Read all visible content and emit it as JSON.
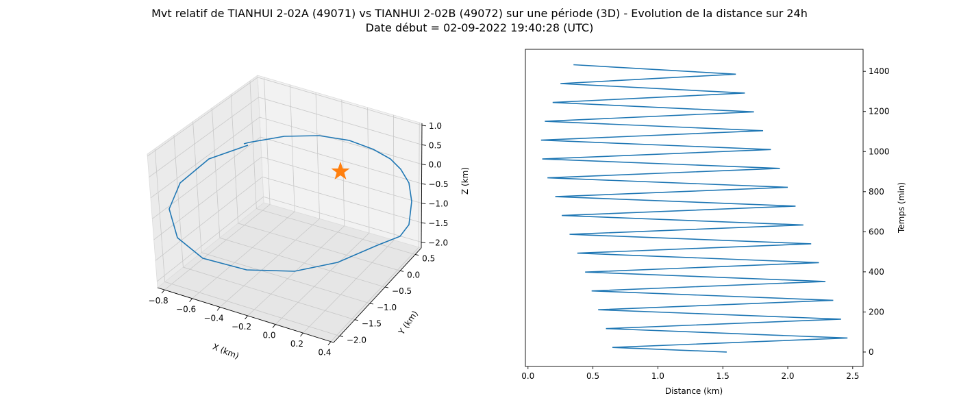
{
  "title_line1": "Mvt relatif de TIANHUI 2-02A (49071) vs TIANHUI 2-02B (49072) sur une période (3D) - Evolution de la distance sur 24h",
  "title_line2": "Date début = 02-09-2022 19:40:28 (UTC)",
  "colors": {
    "line": "#1f77b4",
    "star": "#ff7f0e",
    "grid": "#c8c8c8",
    "pane_back": "#f2f2f2",
    "pane_side": "#ebebeb",
    "pane_floor": "#e6e6e6"
  },
  "chart_data": [
    {
      "type": "line3d",
      "xlabel": "X (km)",
      "ylabel": "Y (km)",
      "zlabel": "Z (km)",
      "xticks": [
        "−0.8",
        "−0.6",
        "−0.4",
        "−0.2",
        "0.0",
        "0.2",
        "0.4"
      ],
      "yticks": [
        "−2.0",
        "−1.5",
        "−1.0",
        "−0.5",
        "0.0",
        "0.5"
      ],
      "zticks": [
        "1.0",
        "0.5",
        "0.0",
        "−0.5",
        "−1.0",
        "−1.5",
        "−2.0"
      ],
      "xlim": [
        -0.85,
        0.42
      ],
      "ylim": [
        -2.2,
        0.7
      ],
      "zlim": [
        -2.15,
        1.05
      ],
      "grid": true,
      "marker": {
        "symbol": "star",
        "x": 0.0,
        "y": 0.0,
        "z": 0.0
      }
    },
    {
      "type": "line",
      "xlabel": "Distance (km)",
      "ylabel": "Temps (min)",
      "xticks": [
        "0.0",
        "0.5",
        "1.0",
        "1.5",
        "2.0",
        "2.5"
      ],
      "yticks": [
        "0",
        "200",
        "400",
        "600",
        "800",
        "1000",
        "1200",
        "1400"
      ],
      "xlim": [
        -0.02,
        2.58
      ],
      "ylim": [
        -72,
        1510
      ],
      "yaxis_side": "right",
      "grid": false,
      "series": [
        {
          "x": [
            1.53,
            0.65,
            2.46,
            0.6,
            2.41,
            0.54,
            2.35,
            0.49,
            2.29,
            0.44,
            2.24,
            0.38,
            2.18,
            0.32,
            2.12,
            0.26,
            2.06,
            0.21,
            2.0,
            0.15,
            1.94,
            0.11,
            1.87,
            0.1,
            1.81,
            0.13,
            1.74,
            0.19,
            1.67,
            0.25,
            1.6,
            0.35
          ],
          "y": [
            0,
            23,
            70,
            117,
            164,
            211,
            258,
            305,
            352,
            399,
            446,
            493,
            540,
            587,
            634,
            681,
            728,
            775,
            822,
            869,
            916,
            963,
            1010,
            1057,
            1104,
            1151,
            1198,
            1245,
            1292,
            1339,
            1386,
            1433
          ]
        }
      ]
    }
  ]
}
